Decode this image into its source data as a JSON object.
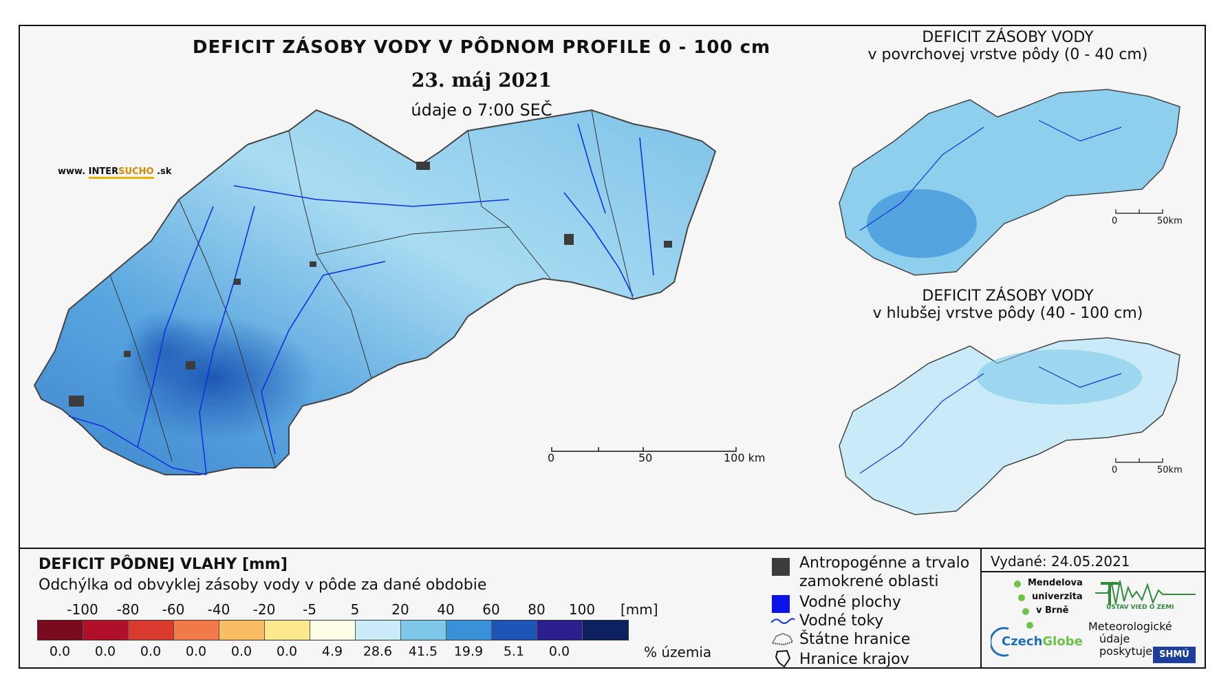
{
  "main": {
    "title": "DEFICIT ZÁSOBY VODY V PÔDNOM PROFILE 0 - 100 cm",
    "date": "23. máj 2021",
    "time": "údaje o 7:00 SEČ",
    "website_prefix": "www.",
    "website_brand_a": "INTER",
    "website_brand_b": "SUCHO",
    "website_suffix": ".sk",
    "scale": {
      "labels": [
        "0",
        "50",
        "100 km"
      ]
    }
  },
  "small_maps": [
    {
      "title_line1": "DEFICIT ZÁSOBY VODY",
      "title_line2": "v povrchovej vrstve pôdy (0 - 40 cm)",
      "scale": [
        "0",
        "50km"
      ]
    },
    {
      "title_line1": "DEFICIT ZÁSOBY VODY",
      "title_line2": "v hlubšej vrstve pôdy (40 - 100 cm)",
      "scale": [
        "0",
        "50km"
      ]
    }
  ],
  "legend": {
    "title": "DEFICIT PÔDNEJ VLAHY [mm]",
    "subtitle": "Odchýlka od obvyklej zásoby vody v pôde za dané obdobie",
    "ticks": [
      "-100",
      "-80",
      "-60",
      "-40",
      "-20",
      "-5",
      "5",
      "20",
      "40",
      "60",
      "80",
      "100"
    ],
    "unit": "[mm]",
    "colors": [
      "#7a0a1e",
      "#b0102a",
      "#d83a2e",
      "#f27a48",
      "#fbbd64",
      "#fce98e",
      "#fefde6",
      "#c8ebf7",
      "#7ec8ea",
      "#3b91d8",
      "#1e56b8",
      "#2a1f8c",
      "#0c1f5e"
    ],
    "percents": [
      "0.0",
      "0.0",
      "0.0",
      "0.0",
      "0.0",
      "0.0",
      "4.9",
      "28.6",
      "41.5",
      "19.9",
      "5.1",
      "0.0"
    ],
    "percent_unit": "% územia"
  },
  "symbols": [
    {
      "icon": "urban-square-icon",
      "label_line1": "Antropogénne a trvalo",
      "label_line2": "zamokrené oblasti",
      "color": "#3c3c3c"
    },
    {
      "icon": "water-square-icon",
      "label_line1": "Vodné plochy",
      "label_line2": "",
      "color": "#0a14e6"
    },
    {
      "icon": "river-line-icon",
      "label_line1": "Vodné toky",
      "label_line2": "",
      "color": "#1030e0"
    },
    {
      "icon": "state-border-icon",
      "label_line1": "Štátne hranice",
      "label_line2": ""
    },
    {
      "icon": "region-border-icon",
      "label_line1": "Hranice krajov",
      "label_line2": ""
    }
  ],
  "issued": "Vydané: 24.05.2021",
  "logos": {
    "mendelu": [
      "Mendelova",
      "univerzita",
      "v Brně"
    ],
    "czechglobe_a": "Czech",
    "czechglobe_b": "Globe",
    "ustav": "ÚSTAV VIED O ZEMI",
    "meteo": [
      "Meteorologické",
      "údaje",
      "poskytuje:"
    ],
    "shmu": "SHMÚ"
  }
}
